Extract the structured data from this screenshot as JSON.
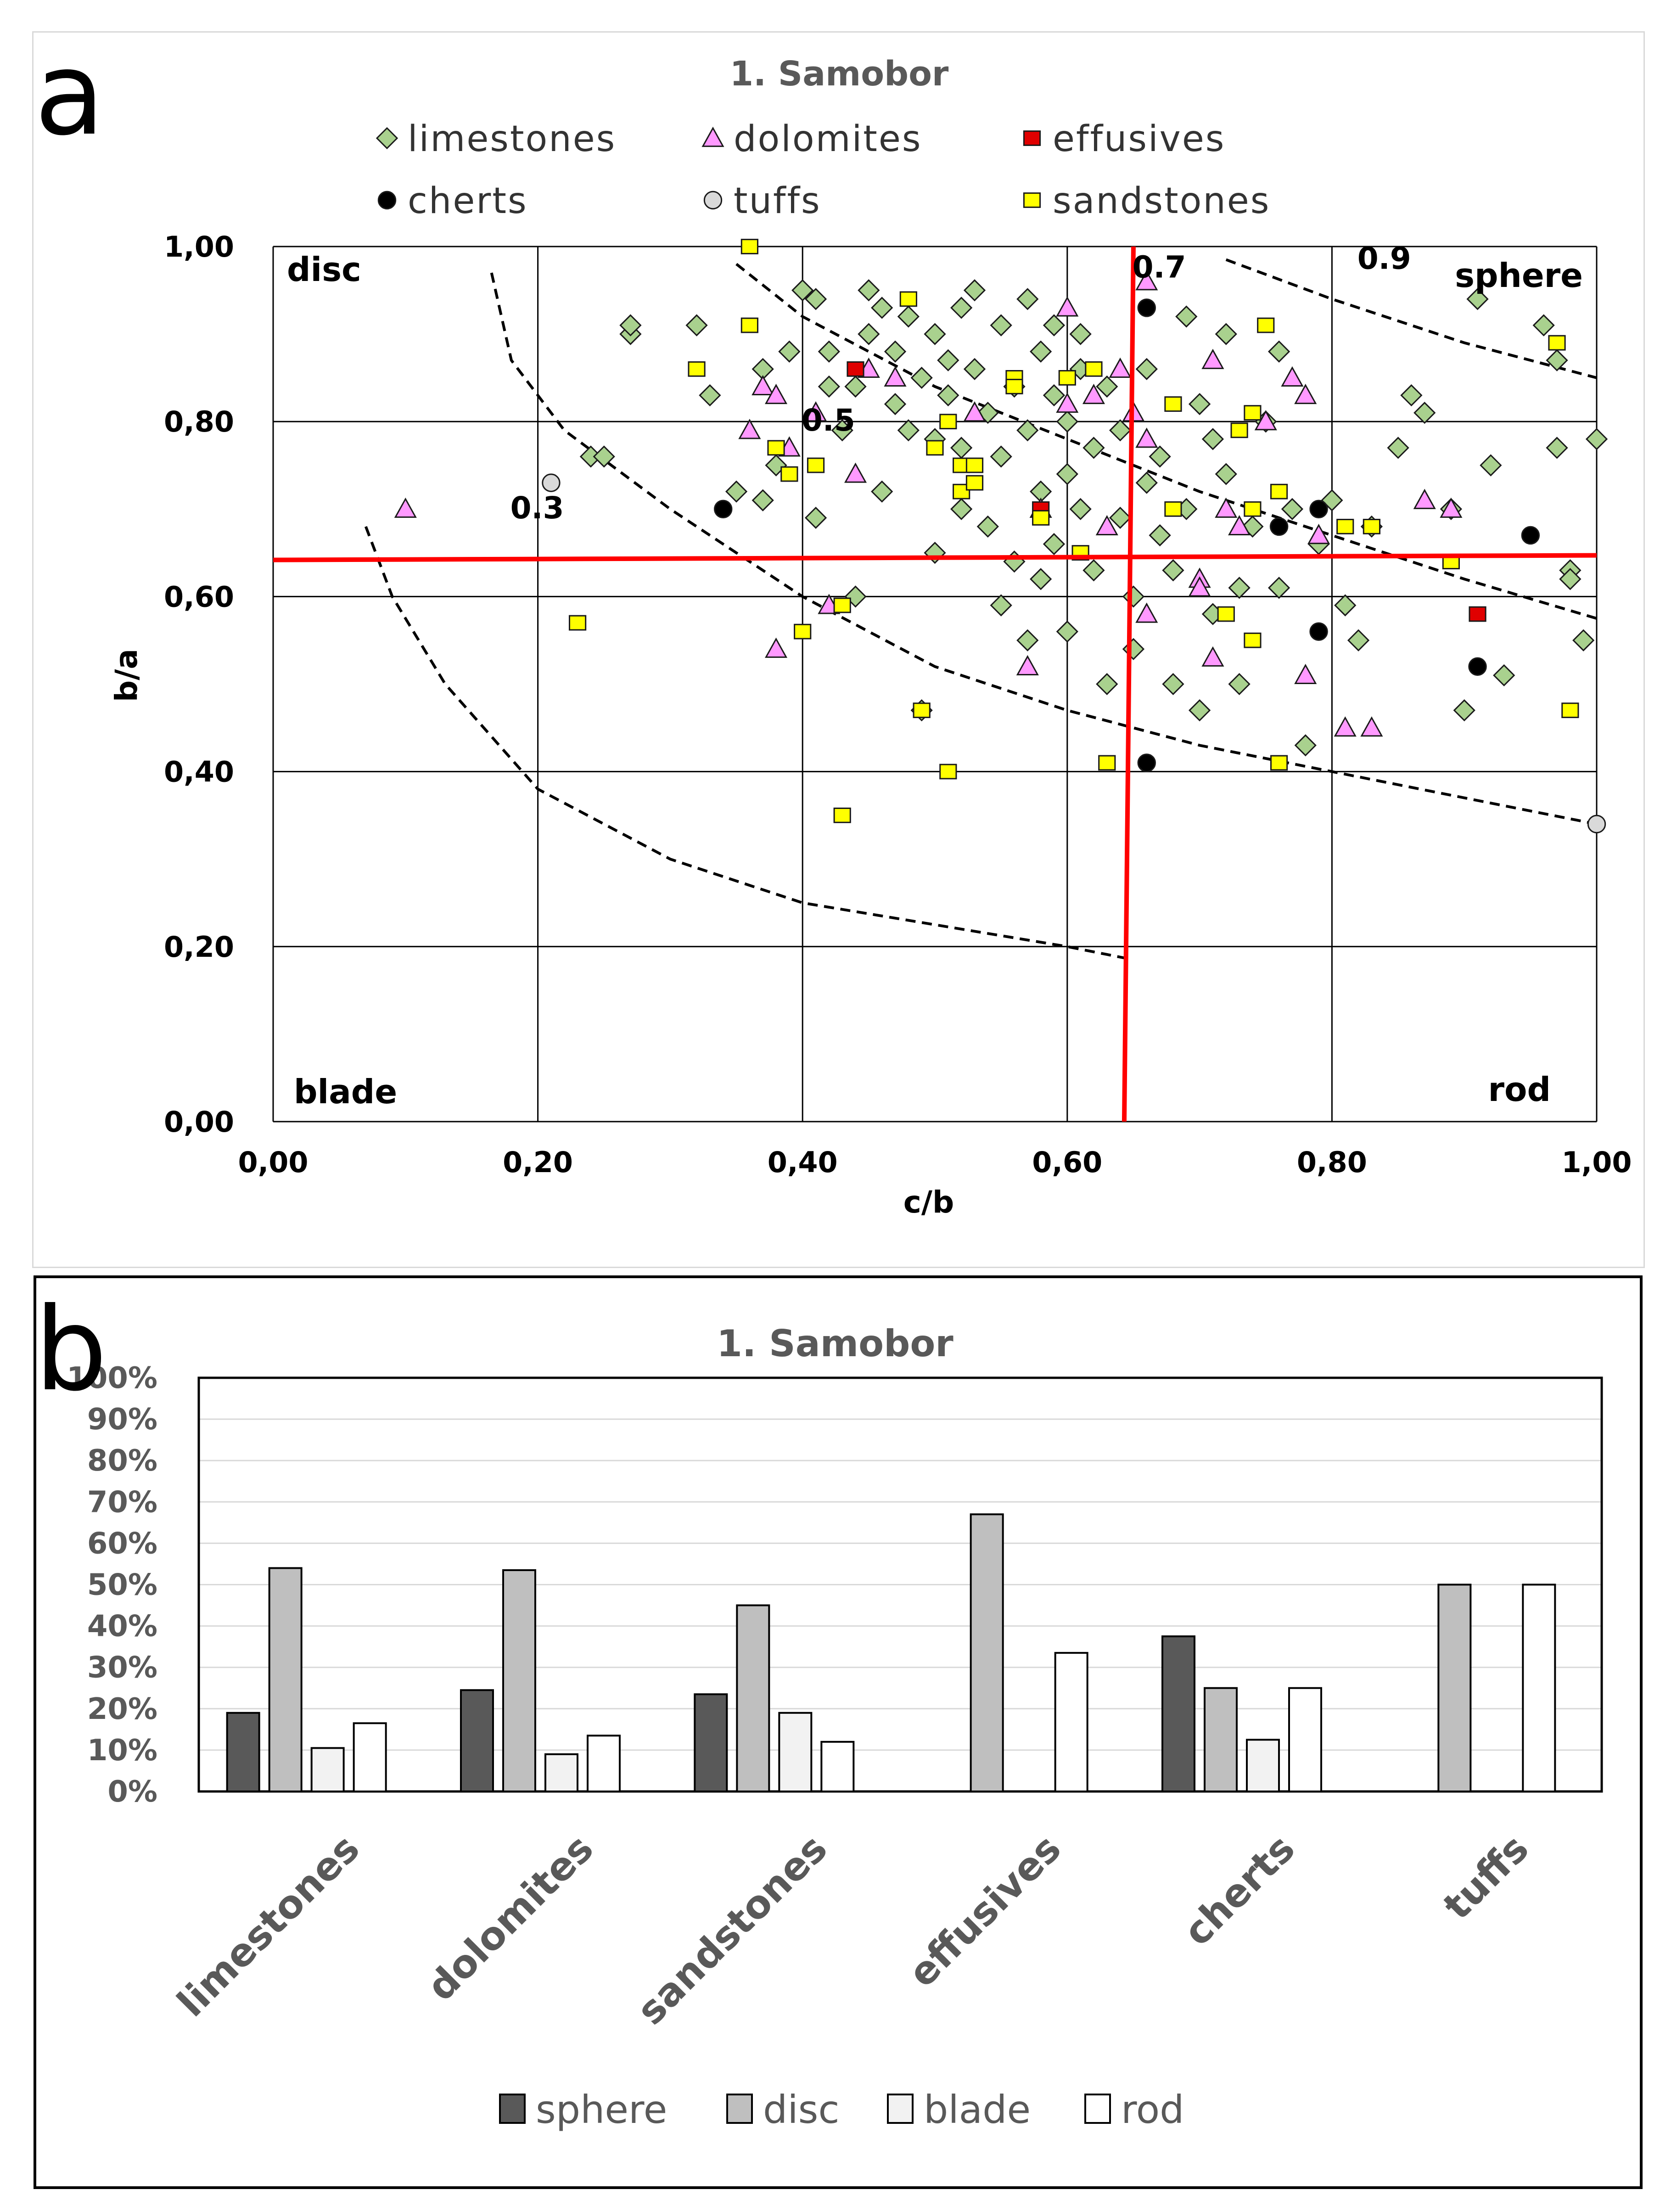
{
  "panel_a": {
    "letter": "a"
  },
  "panel_b": {
    "letter": "b"
  },
  "colors": {
    "limestones": "#a9d18e",
    "dolomites": "#ff99ff",
    "effusives": "#e00000",
    "cherts": "#000000",
    "tuffs": "#d9d9d9",
    "sandstones": "#ffff00",
    "divider": "#ff0000",
    "sphere": "#595959",
    "disc": "#bfbfbf",
    "blade": "#f2f2f2",
    "rod": "#ffffff"
  },
  "chart_data": [
    {
      "type": "scatter",
      "title": "1. Samobor",
      "xlabel": "c/b",
      "ylabel": "b/a",
      "xlim": [
        0,
        1
      ],
      "ylim": [
        0,
        1
      ],
      "x_ticks": [
        "0,00",
        "0,20",
        "0,40",
        "0,60",
        "0,80",
        "1,00"
      ],
      "y_ticks": [
        "0,00",
        "0,20",
        "0,40",
        "0,60",
        "0,80",
        "1,00"
      ],
      "grid": true,
      "legend": [
        "limestones",
        "dolomites",
        "effusives",
        "cherts",
        "tuffs",
        "sandstones"
      ],
      "legend_position": "top",
      "zone_labels": {
        "disc": "disc",
        "sphere": "sphere",
        "blade": "blade",
        "rod": "rod"
      },
      "dividers": {
        "x": 0.65,
        "y": 0.645
      },
      "isolines": [
        {
          "label": "0.3",
          "points": [
            [
              0.07,
              0.68
            ],
            [
              0.09,
              0.6
            ],
            [
              0.13,
              0.5
            ],
            [
              0.2,
              0.38
            ],
            [
              0.3,
              0.3
            ],
            [
              0.4,
              0.25
            ],
            [
              0.5,
              0.225
            ],
            [
              0.6,
              0.2
            ],
            [
              0.65,
              0.185
            ]
          ]
        },
        {
          "label": "0.5",
          "points": [
            [
              0.165,
              0.97
            ],
            [
              0.18,
              0.87
            ],
            [
              0.22,
              0.79
            ],
            [
              0.3,
              0.7
            ],
            [
              0.4,
              0.6
            ],
            [
              0.5,
              0.52
            ],
            [
              0.6,
              0.47
            ],
            [
              0.7,
              0.43
            ],
            [
              0.8,
              0.4
            ],
            [
              0.9,
              0.37
            ],
            [
              1.0,
              0.34
            ]
          ]
        },
        {
          "label": "0.7",
          "points": [
            [
              0.35,
              0.98
            ],
            [
              0.4,
              0.92
            ],
            [
              0.5,
              0.84
            ],
            [
              0.6,
              0.78
            ],
            [
              0.7,
              0.72
            ],
            [
              0.8,
              0.67
            ],
            [
              0.9,
              0.62
            ],
            [
              1.0,
              0.575
            ]
          ]
        },
        {
          "label": "0.9",
          "points": [
            [
              0.72,
              0.985
            ],
            [
              0.8,
              0.94
            ],
            [
              0.9,
              0.89
            ],
            [
              1.0,
              0.85
            ]
          ]
        }
      ],
      "series": [
        {
          "name": "limestones",
          "marker": "diamond",
          "points": [
            [
              0.24,
              0.76
            ],
            [
              0.25,
              0.76
            ],
            [
              0.27,
              0.9
            ],
            [
              0.27,
              0.91
            ],
            [
              0.32,
              0.91
            ],
            [
              0.33,
              0.83
            ],
            [
              0.35,
              0.72
            ],
            [
              0.37,
              0.71
            ],
            [
              0.37,
              0.86
            ],
            [
              0.38,
              0.75
            ],
            [
              0.39,
              0.88
            ],
            [
              0.4,
              0.95
            ],
            [
              0.41,
              0.94
            ],
            [
              0.41,
              0.69
            ],
            [
              0.42,
              0.88
            ],
            [
              0.42,
              0.84
            ],
            [
              0.43,
              0.79
            ],
            [
              0.44,
              0.6
            ],
            [
              0.44,
              0.84
            ],
            [
              0.45,
              0.95
            ],
            [
              0.45,
              0.9
            ],
            [
              0.46,
              0.93
            ],
            [
              0.46,
              0.72
            ],
            [
              0.47,
              0.88
            ],
            [
              0.47,
              0.82
            ],
            [
              0.48,
              0.92
            ],
            [
              0.48,
              0.79
            ],
            [
              0.49,
              0.85
            ],
            [
              0.49,
              0.47
            ],
            [
              0.5,
              0.9
            ],
            [
              0.5,
              0.78
            ],
            [
              0.5,
              0.65
            ],
            [
              0.51,
              0.87
            ],
            [
              0.51,
              0.83
            ],
            [
              0.52,
              0.93
            ],
            [
              0.52,
              0.77
            ],
            [
              0.52,
              0.7
            ],
            [
              0.53,
              0.95
            ],
            [
              0.53,
              0.86
            ],
            [
              0.54,
              0.81
            ],
            [
              0.54,
              0.68
            ],
            [
              0.55,
              0.91
            ],
            [
              0.55,
              0.76
            ],
            [
              0.55,
              0.59
            ],
            [
              0.56,
              0.84
            ],
            [
              0.56,
              0.64
            ],
            [
              0.57,
              0.94
            ],
            [
              0.57,
              0.79
            ],
            [
              0.57,
              0.55
            ],
            [
              0.58,
              0.88
            ],
            [
              0.58,
              0.72
            ],
            [
              0.58,
              0.62
            ],
            [
              0.59,
              0.91
            ],
            [
              0.59,
              0.83
            ],
            [
              0.59,
              0.66
            ],
            [
              0.6,
              0.74
            ],
            [
              0.6,
              0.8
            ],
            [
              0.6,
              0.56
            ],
            [
              0.61,
              0.9
            ],
            [
              0.61,
              0.7
            ],
            [
              0.61,
              0.86
            ],
            [
              0.62,
              0.77
            ],
            [
              0.62,
              0.63
            ],
            [
              0.63,
              0.84
            ],
            [
              0.63,
              0.5
            ],
            [
              0.64,
              0.69
            ],
            [
              0.64,
              0.79
            ],
            [
              0.65,
              0.6
            ],
            [
              0.65,
              0.54
            ],
            [
              0.66,
              0.86
            ],
            [
              0.66,
              0.73
            ],
            [
              0.67,
              0.67
            ],
            [
              0.67,
              0.76
            ],
            [
              0.68,
              0.63
            ],
            [
              0.68,
              0.5
            ],
            [
              0.69,
              0.92
            ],
            [
              0.69,
              0.7
            ],
            [
              0.7,
              0.82
            ],
            [
              0.7,
              0.47
            ],
            [
              0.71,
              0.78
            ],
            [
              0.71,
              0.58
            ],
            [
              0.72,
              0.9
            ],
            [
              0.72,
              0.74
            ],
            [
              0.73,
              0.61
            ],
            [
              0.73,
              0.5
            ],
            [
              0.74,
              0.68
            ],
            [
              0.75,
              0.8
            ],
            [
              0.76,
              0.88
            ],
            [
              0.76,
              0.61
            ],
            [
              0.77,
              0.7
            ],
            [
              0.78,
              0.43
            ],
            [
              0.79,
              0.66
            ],
            [
              0.8,
              0.71
            ],
            [
              0.81,
              0.59
            ],
            [
              0.82,
              0.55
            ],
            [
              0.83,
              0.68
            ],
            [
              0.85,
              0.77
            ],
            [
              0.86,
              0.83
            ],
            [
              0.87,
              0.81
            ],
            [
              0.89,
              0.7
            ],
            [
              0.9,
              0.47
            ],
            [
              0.91,
              0.94
            ],
            [
              0.92,
              0.75
            ],
            [
              0.93,
              0.51
            ],
            [
              0.96,
              0.91
            ],
            [
              0.97,
              0.87
            ],
            [
              0.97,
              0.77
            ],
            [
              0.98,
              0.63
            ],
            [
              0.98,
              0.62
            ],
            [
              0.99,
              0.55
            ],
            [
              1.0,
              0.78
            ]
          ]
        },
        {
          "name": "dolomites",
          "marker": "triangle",
          "points": [
            [
              0.1,
              0.7
            ],
            [
              0.36,
              0.79
            ],
            [
              0.37,
              0.84
            ],
            [
              0.38,
              0.83
            ],
            [
              0.38,
              0.54
            ],
            [
              0.39,
              0.77
            ],
            [
              0.41,
              0.81
            ],
            [
              0.42,
              0.59
            ],
            [
              0.44,
              0.74
            ],
            [
              0.45,
              0.86
            ],
            [
              0.47,
              0.85
            ],
            [
              0.53,
              0.81
            ],
            [
              0.57,
              0.52
            ],
            [
              0.58,
              0.7
            ],
            [
              0.6,
              0.93
            ],
            [
              0.6,
              0.82
            ],
            [
              0.62,
              0.83
            ],
            [
              0.63,
              0.68
            ],
            [
              0.64,
              0.86
            ],
            [
              0.65,
              0.81
            ],
            [
              0.66,
              0.96
            ],
            [
              0.66,
              0.78
            ],
            [
              0.66,
              0.58
            ],
            [
              0.7,
              0.62
            ],
            [
              0.7,
              0.61
            ],
            [
              0.71,
              0.87
            ],
            [
              0.71,
              0.53
            ],
            [
              0.72,
              0.7
            ],
            [
              0.73,
              0.68
            ],
            [
              0.75,
              0.8
            ],
            [
              0.77,
              0.85
            ],
            [
              0.78,
              0.83
            ],
            [
              0.78,
              0.51
            ],
            [
              0.79,
              0.67
            ],
            [
              0.81,
              0.45
            ],
            [
              0.83,
              0.45
            ],
            [
              0.87,
              0.71
            ],
            [
              0.89,
              0.7
            ]
          ]
        },
        {
          "name": "effusives",
          "marker": "square",
          "points": [
            [
              0.44,
              0.86
            ],
            [
              0.58,
              0.7
            ],
            [
              0.91,
              0.58
            ]
          ]
        },
        {
          "name": "cherts",
          "marker": "circle",
          "points": [
            [
              0.34,
              0.7
            ],
            [
              0.66,
              0.93
            ],
            [
              0.66,
              0.41
            ],
            [
              0.76,
              0.68
            ],
            [
              0.79,
              0.7
            ],
            [
              0.79,
              0.56
            ],
            [
              0.91,
              0.52
            ],
            [
              0.95,
              0.67
            ]
          ]
        },
        {
          "name": "tuffs",
          "marker": "circle",
          "points": [
            [
              0.21,
              0.73
            ],
            [
              1.0,
              0.34
            ]
          ]
        },
        {
          "name": "sandstones",
          "marker": "square",
          "points": [
            [
              0.23,
              0.57
            ],
            [
              0.32,
              0.86
            ],
            [
              0.36,
              0.91
            ],
            [
              0.36,
              1.0
            ],
            [
              0.38,
              0.77
            ],
            [
              0.39,
              0.74
            ],
            [
              0.4,
              0.56
            ],
            [
              0.41,
              0.75
            ],
            [
              0.43,
              0.59
            ],
            [
              0.43,
              0.35
            ],
            [
              0.48,
              0.94
            ],
            [
              0.49,
              0.47
            ],
            [
              0.5,
              0.77
            ],
            [
              0.51,
              0.8
            ],
            [
              0.51,
              0.4
            ],
            [
              0.52,
              0.75
            ],
            [
              0.52,
              0.72
            ],
            [
              0.53,
              0.75
            ],
            [
              0.53,
              0.73
            ],
            [
              0.56,
              0.85
            ],
            [
              0.56,
              0.84
            ],
            [
              0.58,
              0.69
            ],
            [
              0.6,
              0.85
            ],
            [
              0.61,
              0.65
            ],
            [
              0.62,
              0.86
            ],
            [
              0.63,
              0.41
            ],
            [
              0.68,
              0.7
            ],
            [
              0.68,
              0.82
            ],
            [
              0.72,
              0.58
            ],
            [
              0.73,
              0.79
            ],
            [
              0.74,
              0.7
            ],
            [
              0.74,
              0.55
            ],
            [
              0.74,
              0.81
            ],
            [
              0.75,
              0.91
            ],
            [
              0.76,
              0.72
            ],
            [
              0.76,
              0.41
            ],
            [
              0.81,
              0.68
            ],
            [
              0.83,
              0.68
            ],
            [
              0.89,
              0.64
            ],
            [
              0.97,
              0.89
            ],
            [
              0.98,
              0.47
            ]
          ]
        }
      ]
    },
    {
      "type": "bar",
      "title": "1. Samobor",
      "categories": [
        "limestones",
        "dolomites",
        "sandstones",
        "effusives",
        "cherts",
        "tuffs"
      ],
      "ylim": [
        0,
        100
      ],
      "y_ticks": [
        "0%",
        "10%",
        "20%",
        "30%",
        "40%",
        "50%",
        "60%",
        "70%",
        "80%",
        "90%",
        "100%"
      ],
      "grid": true,
      "legend_position": "bottom",
      "series": [
        {
          "name": "sphere",
          "values": [
            19,
            24.5,
            23.5,
            0,
            37.5,
            0
          ]
        },
        {
          "name": "disc",
          "values": [
            54,
            53.5,
            45,
            67,
            25,
            50
          ]
        },
        {
          "name": "blade",
          "values": [
            10.5,
            9,
            19,
            0,
            12.5,
            0
          ]
        },
        {
          "name": "rod",
          "values": [
            16.5,
            13.5,
            12,
            33.5,
            25,
            50
          ]
        }
      ]
    }
  ]
}
